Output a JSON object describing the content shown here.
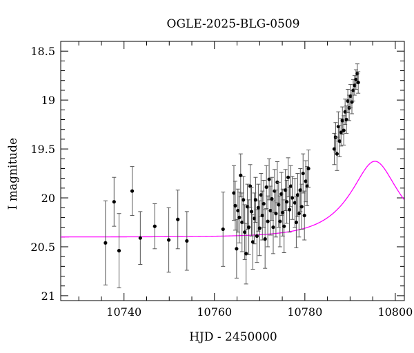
{
  "chart_data": {
    "type": "scatter",
    "title": "OGLE-2025-BLG-0509",
    "xlabel": "HJD - 2450000",
    "ylabel": "I magnitude",
    "xlim": [
      10726,
      10802
    ],
    "ylim": [
      21.05,
      18.4
    ],
    "y_inverted": true,
    "grid": false,
    "xticks": [
      10740,
      10760,
      10780,
      10800
    ],
    "xtick_labels": [
      "10740",
      "10760",
      "10780",
      "10800"
    ],
    "yticks": [
      18.5,
      19,
      19.5,
      20,
      20.5,
      21
    ],
    "ytick_labels": [
      "18.5",
      "19",
      "19.5",
      "20",
      "20.5",
      "21"
    ],
    "colors": {
      "data": "#000000",
      "model": "#ff00ff",
      "errorbar": "#555555"
    },
    "series": [
      {
        "type": "scatter_errorbar",
        "points": [
          [
            10735.9,
            20.46,
            0.43
          ],
          [
            10737.8,
            20.04,
            0.25
          ],
          [
            10738.9,
            20.54,
            0.38
          ],
          [
            10741.8,
            19.93,
            0.25
          ],
          [
            10743.6,
            20.41,
            0.27
          ],
          [
            10746.8,
            20.29,
            0.23
          ],
          [
            10749.9,
            20.43,
            0.33
          ],
          [
            10751.9,
            20.22,
            0.3
          ],
          [
            10753.9,
            20.44,
            0.3
          ],
          [
            10761.9,
            20.32,
            0.38
          ],
          [
            10764.3,
            19.95,
            0.28
          ],
          [
            10764.6,
            20.08,
            0.25
          ],
          [
            10764.9,
            20.52,
            0.3
          ],
          [
            10765.2,
            20.13,
            0.22
          ],
          [
            10765.5,
            20.2,
            0.26
          ],
          [
            10765.8,
            19.77,
            0.22
          ],
          [
            10766.1,
            20.25,
            0.3
          ],
          [
            10766.4,
            20.02,
            0.24
          ],
          [
            10766.7,
            20.35,
            0.28
          ],
          [
            10767.0,
            20.57,
            0.31
          ],
          [
            10767.3,
            20.09,
            0.23
          ],
          [
            10767.6,
            20.3,
            0.28
          ],
          [
            10767.9,
            19.88,
            0.22
          ],
          [
            10768.2,
            20.14,
            0.25
          ],
          [
            10768.5,
            20.45,
            0.28
          ],
          [
            10768.8,
            20.21,
            0.26
          ],
          [
            10769.1,
            20.02,
            0.23
          ],
          [
            10769.4,
            20.39,
            0.27
          ],
          [
            10769.7,
            20.1,
            0.24
          ],
          [
            10770.0,
            20.31,
            0.28
          ],
          [
            10770.3,
            19.97,
            0.22
          ],
          [
            10770.6,
            20.18,
            0.25
          ],
          [
            10770.9,
            20.06,
            0.24
          ],
          [
            10771.2,
            20.42,
            0.3
          ],
          [
            10771.5,
            19.89,
            0.22
          ],
          [
            10771.8,
            20.24,
            0.26
          ],
          [
            10772.1,
            19.81,
            0.21
          ],
          [
            10772.4,
            20.13,
            0.25
          ],
          [
            10772.7,
            20.01,
            0.22
          ],
          [
            10773.0,
            20.3,
            0.27
          ],
          [
            10773.3,
            19.93,
            0.22
          ],
          [
            10773.6,
            20.16,
            0.24
          ],
          [
            10773.9,
            19.84,
            0.21
          ],
          [
            10774.2,
            20.07,
            0.23
          ],
          [
            10774.5,
            20.24,
            0.26
          ],
          [
            10774.8,
            19.96,
            0.22
          ],
          [
            10775.1,
            20.15,
            0.24
          ],
          [
            10775.4,
            20.29,
            0.27
          ],
          [
            10775.7,
            19.92,
            0.21
          ],
          [
            10776.0,
            20.04,
            0.22
          ],
          [
            10776.3,
            19.79,
            0.2
          ],
          [
            10776.6,
            20.12,
            0.23
          ],
          [
            10776.9,
            19.88,
            0.21
          ],
          [
            10777.2,
            20.0,
            0.22
          ],
          [
            10777.8,
            20.05,
            0.25
          ],
          [
            10778.1,
            20.25,
            0.26
          ],
          [
            10778.4,
            19.97,
            0.22
          ],
          [
            10778.7,
            20.16,
            0.24
          ],
          [
            10779.0,
            19.92,
            0.22
          ],
          [
            10779.3,
            20.09,
            0.23
          ],
          [
            10779.6,
            19.75,
            0.2
          ],
          [
            10779.9,
            20.18,
            0.25
          ],
          [
            10780.2,
            19.83,
            0.21
          ],
          [
            10780.5,
            19.88,
            0.2
          ],
          [
            10780.8,
            19.7,
            0.19
          ],
          [
            10786.5,
            19.5,
            0.16
          ],
          [
            10786.8,
            19.38,
            0.15
          ],
          [
            10787.1,
            19.55,
            0.17
          ],
          [
            10787.4,
            19.27,
            0.15
          ],
          [
            10787.7,
            19.42,
            0.16
          ],
          [
            10788.0,
            19.33,
            0.14
          ],
          [
            10788.3,
            19.21,
            0.14
          ],
          [
            10788.6,
            19.31,
            0.15
          ],
          [
            10788.9,
            19.12,
            0.13
          ],
          [
            10789.2,
            19.2,
            0.14
          ],
          [
            10789.5,
            19.01,
            0.12
          ],
          [
            10789.8,
            19.08,
            0.13
          ],
          [
            10790.1,
            18.96,
            0.12
          ],
          [
            10790.4,
            19.02,
            0.12
          ],
          [
            10790.7,
            18.9,
            0.11
          ],
          [
            10791.0,
            18.85,
            0.1
          ],
          [
            10791.3,
            18.79,
            0.1
          ],
          [
            10791.6,
            18.73,
            0.1
          ],
          [
            10791.8,
            18.82,
            0.11
          ]
        ]
      },
      {
        "type": "line",
        "model": "microlensing",
        "t0": 10795.5,
        "tE": 10.2,
        "u0": 0.45,
        "baseline_mag": 20.4,
        "blend_fraction": 0.75,
        "x_range": [
          10726,
          10802
        ]
      }
    ]
  }
}
